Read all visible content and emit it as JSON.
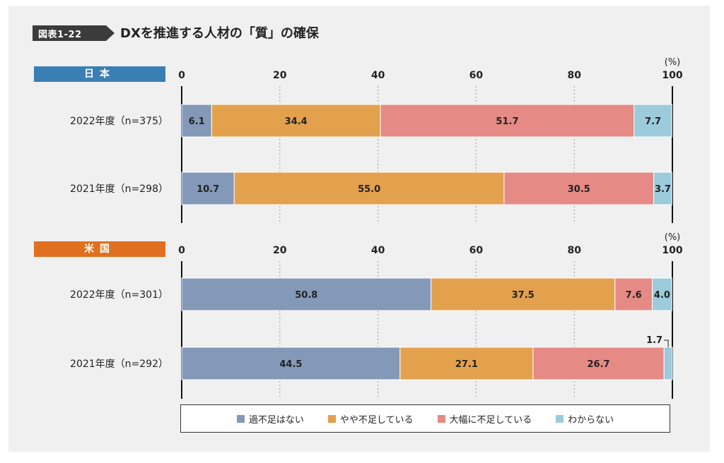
{
  "figure": {
    "tag": "図表1-22",
    "title": "DXを推進する人材の「質」の確保"
  },
  "legend": [
    {
      "label": "過不足はない",
      "color": "#8499b8"
    },
    {
      "label": "やや不足している",
      "color": "#e3a04d"
    },
    {
      "label": "大幅に不足している",
      "color": "#e58a85"
    },
    {
      "label": "わからない",
      "color": "#9ccbdb"
    }
  ],
  "chart_data": [
    {
      "type": "bar",
      "orientation": "horizontal-stacked",
      "panel_label": "日本",
      "unit": "(%)",
      "xlim": [
        0,
        100
      ],
      "ticks": [
        0,
        20,
        40,
        60,
        80,
        100
      ],
      "categories": [
        "2022年度（n=375）",
        "2021年度（n=298）"
      ],
      "series": [
        {
          "name": "過不足はない",
          "values": [
            6.1,
            10.7
          ]
        },
        {
          "name": "やや不足している",
          "values": [
            34.4,
            55.0
          ]
        },
        {
          "name": "大幅に不足している",
          "values": [
            51.7,
            30.5
          ]
        },
        {
          "name": "わからない",
          "values": [
            7.7,
            3.7
          ]
        }
      ],
      "labels": [
        [
          "6.1",
          "34.4",
          "51.7",
          "7.7"
        ],
        [
          "10.7",
          "55.0",
          "30.5",
          "3.7"
        ]
      ]
    },
    {
      "type": "bar",
      "orientation": "horizontal-stacked",
      "panel_label": "米国",
      "unit": "(%)",
      "xlim": [
        0,
        100
      ],
      "ticks": [
        0,
        20,
        40,
        60,
        80,
        100
      ],
      "categories": [
        "2022年度（n=301）",
        "2021年度（n=292）"
      ],
      "series": [
        {
          "name": "過不足はない",
          "values": [
            50.8,
            44.5
          ]
        },
        {
          "name": "やや不足している",
          "values": [
            37.5,
            27.1
          ]
        },
        {
          "name": "大幅に不足している",
          "values": [
            7.6,
            26.7
          ]
        },
        {
          "name": "わからない",
          "values": [
            4.0,
            1.7
          ]
        }
      ],
      "labels": [
        [
          "50.8",
          "37.5",
          "7.6",
          "4.0"
        ],
        [
          "44.5",
          "27.1",
          "26.7",
          "1.7"
        ]
      ]
    }
  ]
}
